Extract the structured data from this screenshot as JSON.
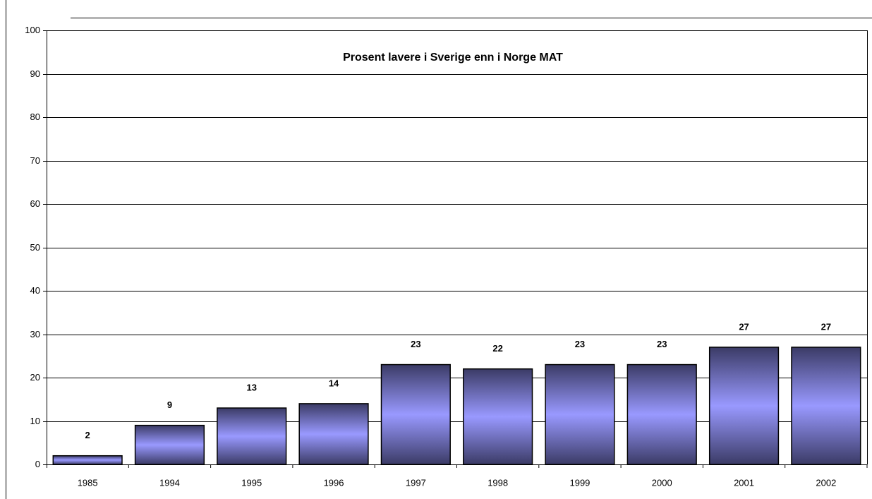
{
  "chart_data": {
    "type": "bar",
    "title": "Prosent lavere i Sverige enn i Norge MAT",
    "categories": [
      "1985",
      "1994",
      "1995",
      "1996",
      "1997",
      "1998",
      "1999",
      "2000",
      "2001",
      "2002"
    ],
    "values": [
      2,
      9,
      13,
      14,
      23,
      22,
      23,
      23,
      27,
      27
    ],
    "color": "#9999ff",
    "ylim": [
      0,
      100
    ],
    "yticks": [
      0,
      10,
      20,
      30,
      40,
      50,
      60,
      70,
      80,
      90,
      100
    ],
    "grid": true
  }
}
